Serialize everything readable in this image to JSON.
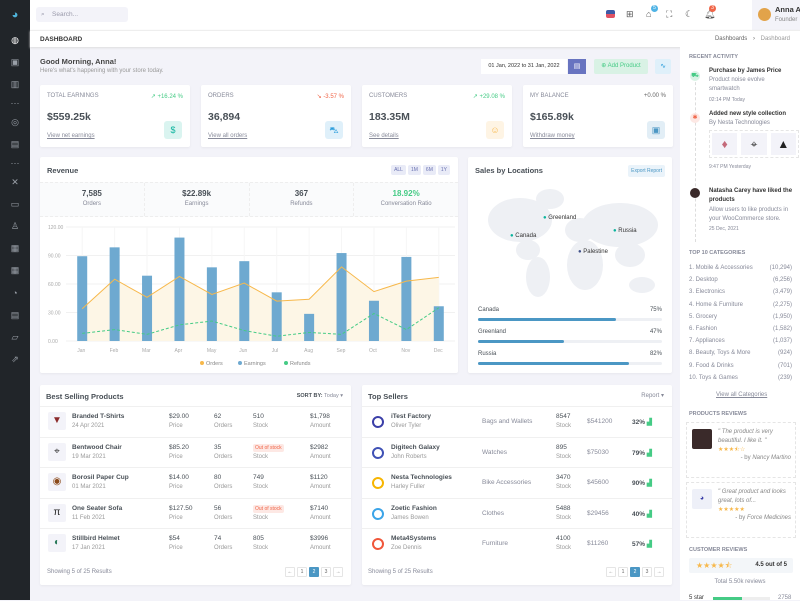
{
  "header": {
    "search_placeholder": "Search...",
    "cart_badge": "5",
    "notif_badge": "3",
    "user_name": "Anna Adame",
    "user_role": "Founder"
  },
  "titlebar": {
    "title": "DASHBOARD",
    "crumbs": [
      "Dashboards",
      "Dashboard"
    ]
  },
  "greeting": {
    "title": "Good Morning, Anna!",
    "subtitle": "Here's what's happening with your store today.",
    "date_range": "01 Jan, 2022 to 31 Jan, 2022",
    "add_product": "Add Product"
  },
  "stats": [
    {
      "label": "TOTAL EARNINGS",
      "change": "+16.24 %",
      "value": "$559.25k",
      "link": "View net earnings",
      "color": "#0ab39c",
      "bg": "#daf4f0",
      "icon": "dollar-icon",
      "trend": "up"
    },
    {
      "label": "ORDERS",
      "change": "-3.57 %",
      "value": "36,894",
      "link": "View all orders",
      "color": "#299cdb",
      "bg": "#dff0fa",
      "icon": "shopping-bag-icon",
      "trend": "down"
    },
    {
      "label": "CUSTOMERS",
      "change": "+29.08 %",
      "value": "183.35M",
      "link": "See details",
      "color": "#f7b84b",
      "bg": "#fef4e4",
      "icon": "user-circle-icon",
      "trend": "up"
    },
    {
      "label": "MY BALANCE",
      "change": "+0.00 %",
      "value": "$165.89k",
      "link": "Withdraw money",
      "color": "#4b97c4",
      "bg": "#e2eef6",
      "icon": "wallet-icon",
      "trend": "flat"
    }
  ],
  "revenue": {
    "title": "Revenue",
    "filters": [
      "ALL",
      "1M",
      "6M",
      "1Y"
    ],
    "summary": [
      {
        "value": "7,585",
        "label": "Orders"
      },
      {
        "value": "$22.89k",
        "label": "Earnings"
      },
      {
        "value": "367",
        "label": "Refunds"
      },
      {
        "value": "18.92%",
        "label": "Conversation Ratio"
      }
    ]
  },
  "chart_data": {
    "type": "bar",
    "categories": [
      "Jan",
      "Feb",
      "Mar",
      "Apr",
      "May",
      "Jun",
      "Jul",
      "Aug",
      "Sep",
      "Oct",
      "Nov",
      "Dec"
    ],
    "ylim": [
      0,
      120
    ],
    "yticks": [
      "0.00",
      "30.00",
      "60.00",
      "90.00",
      "120.00"
    ],
    "grid": true,
    "legend": "bottom",
    "series": [
      {
        "name": "Orders",
        "type": "area",
        "color": "#f7b84b",
        "values": [
          34,
          65,
          46,
          68,
          49,
          61,
          42,
          44,
          78,
          52,
          63,
          67
        ]
      },
      {
        "name": "Earnings",
        "type": "bar",
        "color": "#6ea9d0",
        "values": [
          89.25,
          98.58,
          68.74,
          108.87,
          77.54,
          84.03,
          51.24,
          28.57,
          92.57,
          42.36,
          88.51,
          36.57
        ]
      },
      {
        "name": "Refunds",
        "type": "dashed-line",
        "color": "#45cb85",
        "values": [
          8,
          12,
          7,
          17,
          21,
          11,
          5,
          9,
          7,
          29,
          12,
          35
        ]
      }
    ]
  },
  "sales": {
    "title": "Sales by Locations",
    "export": "Export Report",
    "markers": [
      "Greenland",
      "Canada",
      "Russia",
      "Palestine"
    ],
    "bars": [
      {
        "name": "Canada",
        "pct": 75
      },
      {
        "name": "Greenland",
        "pct": 47
      },
      {
        "name": "Russia",
        "pct": 82
      }
    ]
  },
  "best": {
    "title": "Best Selling Products",
    "sort_label": "SORT BY:",
    "sort_value": "Today",
    "footer": "Showing 5 of 25 Results",
    "col_labels": {
      "price": "Price",
      "orders": "Orders",
      "stock": "Stock",
      "amount": "Amount"
    },
    "rows": [
      {
        "name": "Branded T-Shirts",
        "date": "24 Apr 2021",
        "price": "$29.00",
        "orders": "62",
        "stock": "510",
        "amount": "$1,798",
        "icon": "tshirt-icon"
      },
      {
        "name": "Bentwood Chair",
        "date": "19 Mar 2021",
        "price": "$85.20",
        "orders": "35",
        "stock": "Out of stock",
        "amount": "$2982",
        "icon": "chair-icon"
      },
      {
        "name": "Borosil Paper Cup",
        "date": "01 Mar 2021",
        "price": "$14.00",
        "orders": "80",
        "stock": "749",
        "amount": "$1120",
        "icon": "cup-icon"
      },
      {
        "name": "One Seater Sofa",
        "date": "11 Feb 2021",
        "price": "$127.50",
        "orders": "56",
        "stock": "Out of stock",
        "amount": "$7140",
        "icon": "sofa-icon"
      },
      {
        "name": "Stillbird Helmet",
        "date": "17 Jan 2021",
        "price": "$54",
        "orders": "74",
        "stock": "805",
        "amount": "$3996",
        "icon": "helmet-icon"
      }
    ]
  },
  "sellers": {
    "title": "Top Sellers",
    "report": "Report",
    "footer": "Showing 5 of 25 Results",
    "stock_label": "Stock",
    "rows": [
      {
        "name": "iTest Factory",
        "person": "Oliver Tyler",
        "category": "Bags and Wallets",
        "stock": "8547",
        "amount": "$541200",
        "pct": "32%",
        "color": "#3b3fa8"
      },
      {
        "name": "Digitech Galaxy",
        "person": "John Roberts",
        "category": "Watches",
        "stock": "895",
        "amount": "$75030",
        "pct": "79%",
        "color": "#3f51b5"
      },
      {
        "name": "Nesta Technologies",
        "person": "Harley Fuller",
        "category": "Bike Accessories",
        "stock": "3470",
        "amount": "$45600",
        "pct": "90%",
        "color": "#f7b500"
      },
      {
        "name": "Zoetic Fashion",
        "person": "James Bowen",
        "category": "Clothes",
        "stock": "5488",
        "amount": "$29456",
        "pct": "40%",
        "color": "#3ba4e8"
      },
      {
        "name": "Meta4Systems",
        "person": "Zoe Dennis",
        "category": "Furniture",
        "stock": "4100",
        "amount": "$11260",
        "pct": "57%",
        "color": "#f0563a"
      }
    ]
  },
  "pagination": [
    "←",
    "1",
    "2",
    "3",
    "→"
  ],
  "activity": {
    "title": "RECENT ACTIVITY",
    "items": [
      {
        "title": "Purchase by James Price",
        "desc": "Product noise evolve smartwatch",
        "time": "02:14 PM Today"
      },
      {
        "title": "Added new style collection",
        "desc": "By Nesta Technologies",
        "time": "9:47 PM Yesterday"
      },
      {
        "title": "Natasha Carey have liked the products",
        "desc": "Allow users to like products in your WooCommerce store.",
        "time": "25 Dec, 2021"
      }
    ]
  },
  "categories": {
    "title": "TOP 10 CATEGORIES",
    "link": "View all Categories",
    "items": [
      {
        "name": "1. Mobile & Accessories",
        "count": "(10,294)"
      },
      {
        "name": "2. Desktop",
        "count": "(6,256)"
      },
      {
        "name": "3. Electronics",
        "count": "(3,479)"
      },
      {
        "name": "4. Home & Furniture",
        "count": "(2,275)"
      },
      {
        "name": "5. Grocery",
        "count": "(1,950)"
      },
      {
        "name": "6. Fashion",
        "count": "(1,582)"
      },
      {
        "name": "7. Appliances",
        "count": "(1,037)"
      },
      {
        "name": "8. Beauty, Toys & More",
        "count": "(924)"
      },
      {
        "name": "9. Food & Drinks",
        "count": "(701)"
      },
      {
        "name": "10. Toys & Games",
        "count": "(239)"
      }
    ]
  },
  "reviews": {
    "title": "PRODUCTS REVIEWS",
    "items": [
      {
        "text": "\" The product is very beautiful. I like it. \"",
        "by": "- by",
        "author": "Nancy Martino",
        "stars": 3.5
      },
      {
        "text": "\" Great product and looks great, lots of...",
        "by": "- by",
        "author": "Force Medicines",
        "stars": 5
      }
    ]
  },
  "customer_reviews": {
    "title": "CUSTOMER REVIEWS",
    "rating": "4.5 out of 5",
    "stars": 4.5,
    "total": "Total 5.50k reviews",
    "first_row": {
      "label": "5 star",
      "count": "2758"
    }
  }
}
